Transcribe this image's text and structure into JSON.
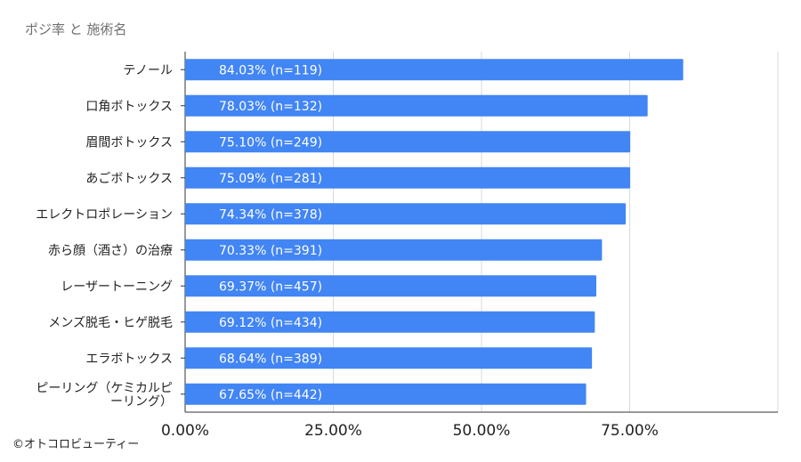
{
  "chart_data": {
    "type": "bar",
    "orientation": "horizontal",
    "title": "ポジ率 と 施術名",
    "categories": [
      [
        "テノール"
      ],
      [
        "口角ボトックス"
      ],
      [
        "眉間ボトックス"
      ],
      [
        "あごボトックス"
      ],
      [
        "エレクトロポレーション"
      ],
      [
        "赤ら顔（酒さ）の治療"
      ],
      [
        "レーザートーニング"
      ],
      [
        "メンズ脱毛・ヒゲ脱毛"
      ],
      [
        "エラボトックス"
      ],
      [
        "ピーリング（ケミカルピ",
        "ーリング）"
      ]
    ],
    "values": [
      84.03,
      78.03,
      75.1,
      75.09,
      74.34,
      70.33,
      69.37,
      69.12,
      68.64,
      67.65
    ],
    "data_labels": [
      "84.03% (n=119)",
      "78.03% (n=132)",
      "75.10% (n=249)",
      "75.09% (n=281)",
      "74.34% (n=378)",
      "70.33% (n=391)",
      "69.37% (n=457)",
      "69.12% (n=434)",
      "68.64% (n=389)",
      "67.65% (n=442)"
    ],
    "xticks": [
      0,
      25,
      50,
      75
    ],
    "xtick_labels": [
      "0.00%",
      "25.00%",
      "50.00%",
      "75.00%"
    ],
    "xlim": [
      0,
      100
    ],
    "grid": true,
    "bar_color": "#4285f4",
    "grid_color": "#d9d9d9",
    "axis_color": "#333333"
  },
  "credit": "©オトコロビューティー"
}
